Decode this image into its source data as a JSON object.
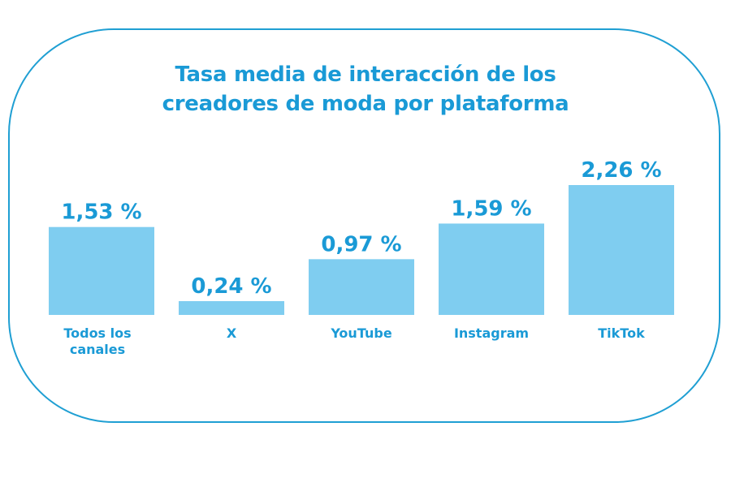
{
  "chart_data": {
    "type": "bar",
    "title": "Tasa media de interacción de los creadores de moda por plataforma",
    "title_lines": [
      "Tasa media de interacción de los",
      "creadores de moda por plataforma"
    ],
    "categories": [
      [
        "Todos los",
        "canales"
      ],
      [
        "X"
      ],
      [
        "YouTube"
      ],
      [
        "Instagram"
      ],
      [
        "TikTok"
      ]
    ],
    "category_names": [
      "Todos los canales",
      "X",
      "YouTube",
      "Instagram",
      "TikTok"
    ],
    "values": [
      1.53,
      0.24,
      0.97,
      1.59,
      2.26
    ],
    "value_labels": [
      "1,53 %",
      "0,24 %",
      "0,97 %",
      "1,59 %",
      "2,26 %"
    ],
    "unit": "%",
    "xlabel": "",
    "ylabel": "",
    "ylim": [
      0,
      2.26
    ],
    "grid": false,
    "legend": "none",
    "colors": {
      "bar": "#7fcdf0",
      "text": "#1a9ad6",
      "frame": "#1f9fd3"
    }
  }
}
